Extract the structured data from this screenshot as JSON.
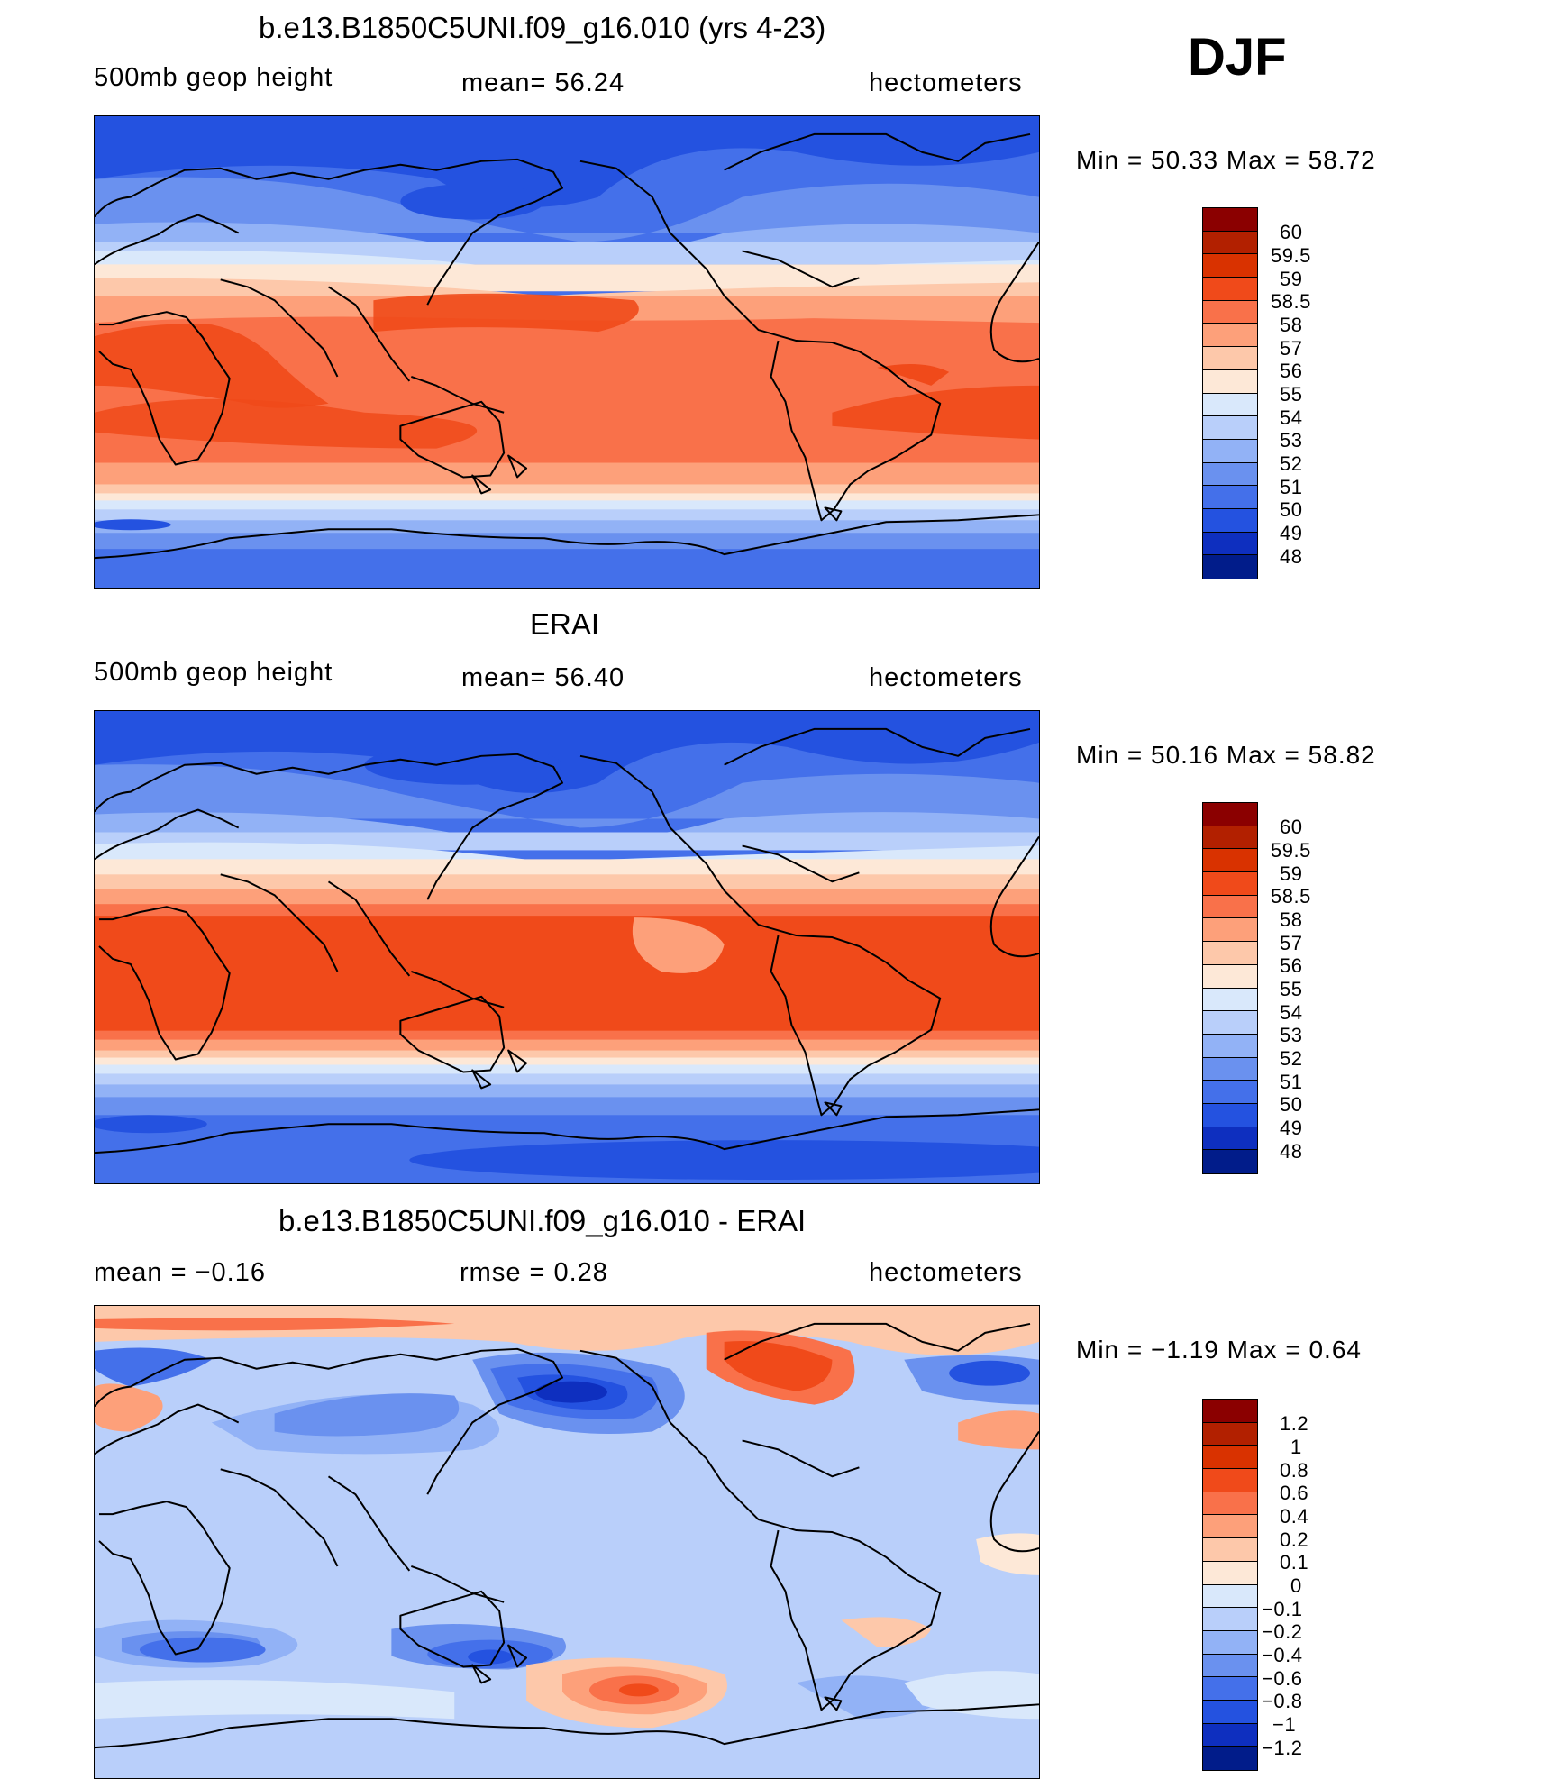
{
  "season": "DJF",
  "panels": [
    {
      "title": "b.e13.B1850C5UNI.f09_g16.010 (yrs 4-23)",
      "left_label": "500mb geop height",
      "center_label": "mean=  56.24",
      "right_label": "hectometers",
      "minmax": "Min =   50.33 Max =   58.72",
      "levels": [
        "60",
        "59.5",
        "59",
        "58.5",
        "58",
        "57",
        "56",
        "55",
        "54",
        "53",
        "52",
        "51",
        "50",
        "49",
        "48"
      ],
      "colors": [
        "#8b0000",
        "#b22000",
        "#d93200",
        "#f04a1a",
        "#f9714a",
        "#fda07a",
        "#fdc8aa",
        "#fde8d7",
        "#d9e8fb",
        "#b9cffa",
        "#92b2f6",
        "#6a91ef",
        "#4470ea",
        "#2452e0",
        "#0e2fbf",
        "#011c8a"
      ]
    },
    {
      "title": "ERAI",
      "left_label": "500mb geop height",
      "center_label": "mean=  56.40",
      "right_label": "hectometers",
      "minmax": "Min =   50.16 Max =   58.82",
      "levels": [
        "60",
        "59.5",
        "59",
        "58.5",
        "58",
        "57",
        "56",
        "55",
        "54",
        "53",
        "52",
        "51",
        "50",
        "49",
        "48"
      ],
      "colors": [
        "#8b0000",
        "#b22000",
        "#d93200",
        "#f04a1a",
        "#f9714a",
        "#fda07a",
        "#fdc8aa",
        "#fde8d7",
        "#d9e8fb",
        "#b9cffa",
        "#92b2f6",
        "#6a91ef",
        "#4470ea",
        "#2452e0",
        "#0e2fbf",
        "#011c8a"
      ]
    },
    {
      "title": "b.e13.B1850C5UNI.f09_g16.010 - ERAI",
      "left_label": "mean =   −0.16",
      "center_label": "rmse =    0.28",
      "right_label": "hectometers",
      "minmax": "Min =   −1.19 Max =    0.64",
      "levels": [
        "1.2",
        "1",
        "0.8",
        "0.6",
        "0.4",
        "0.2",
        "0.1",
        "0",
        "−0.1",
        "−0.2",
        "−0.4",
        "−0.6",
        "−0.8",
        "−1",
        "−1.2"
      ],
      "colors": [
        "#8b0000",
        "#b22000",
        "#d93200",
        "#f04a1a",
        "#f9714a",
        "#fda07a",
        "#fdc8aa",
        "#fde8d7",
        "#d9e8fb",
        "#b9cffa",
        "#92b2f6",
        "#6a91ef",
        "#4470ea",
        "#2452e0",
        "#0e2fbf",
        "#011c8a"
      ]
    }
  ]
}
